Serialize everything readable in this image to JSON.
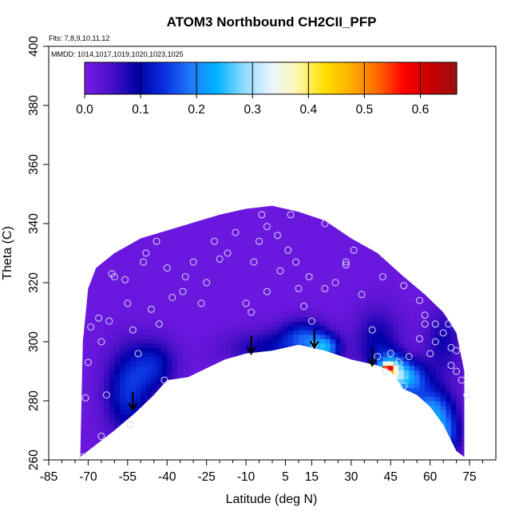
{
  "chart_data": {
    "type": "heatmap",
    "title": "ATOM3 Northbound CH2CII_PFP",
    "flights_note": "Flts: 7,8,9,10,11,12",
    "dates_note": "MMDD: 1014,1017,1019,1020,1023,1025",
    "xlabel": "Latitude (deg N)",
    "ylabel": "Theta (C)",
    "xlim": [
      -85,
      85
    ],
    "ylim": [
      260,
      400
    ],
    "x_ticks": [
      -85,
      -70,
      -55,
      -40,
      -25,
      -10,
      5,
      15,
      30,
      45,
      60,
      75
    ],
    "y_ticks": [
      260,
      280,
      300,
      320,
      340,
      360,
      380,
      400
    ],
    "colorbar": {
      "range": [
        0.0,
        0.665
      ],
      "ticks": [
        0.0,
        0.1,
        0.2,
        0.3,
        0.4,
        0.5,
        0.6
      ],
      "tick_labels": [
        "0.0",
        "0.1",
        "0.2",
        "0.3",
        "0.4",
        "0.5",
        "0.6"
      ],
      "colors": [
        "#7a1be8",
        "#4a10c8",
        "#0000a8",
        "#0a2fe0",
        "#1e7bff",
        "#00b4ff",
        "#8fdcff",
        "#e8f6ff",
        "#fff7b0",
        "#ffe000",
        "#ffb000",
        "#ff6a00",
        "#ff0000",
        "#c80000",
        "#9a1010"
      ]
    },
    "upper_boundary": [
      [
        -73,
        261
      ],
      [
        -72,
        300
      ],
      [
        -70,
        318
      ],
      [
        -67,
        325
      ],
      [
        -60,
        330
      ],
      [
        -50,
        335
      ],
      [
        -35,
        339
      ],
      [
        -20,
        343
      ],
      [
        -10,
        345
      ],
      [
        0,
        346
      ],
      [
        10,
        344
      ],
      [
        20,
        341
      ],
      [
        30,
        335
      ],
      [
        40,
        330
      ],
      [
        50,
        322
      ],
      [
        58,
        316
      ],
      [
        65,
        310
      ],
      [
        70,
        303
      ],
      [
        73,
        290
      ],
      [
        73,
        261
      ]
    ],
    "lower_boundary": [
      [
        -73,
        261
      ],
      [
        -60,
        270
      ],
      [
        -52,
        276
      ],
      [
        -45,
        282
      ],
      [
        -40,
        287
      ],
      [
        -32,
        288
      ],
      [
        -25,
        291
      ],
      [
        -18,
        294
      ],
      [
        -10,
        296
      ],
      [
        0,
        297
      ],
      [
        10,
        299
      ],
      [
        20,
        297
      ],
      [
        30,
        294
      ],
      [
        40,
        292
      ],
      [
        45,
        290
      ],
      [
        50,
        284
      ],
      [
        55,
        282
      ],
      [
        60,
        278
      ],
      [
        65,
        272
      ],
      [
        70,
        263
      ],
      [
        73,
        261
      ]
    ],
    "field_blobs": [
      {
        "x": -55,
        "y": 283,
        "sx": 6,
        "sy": 10,
        "value": 0.12
      },
      {
        "x": -45,
        "y": 292,
        "sx": 6,
        "sy": 6,
        "value": 0.1
      },
      {
        "x": 0,
        "y": 298,
        "sx": 12,
        "sy": 4,
        "value": 0.08
      },
      {
        "x": 12,
        "y": 302,
        "sx": 6,
        "sy": 4,
        "value": 0.12
      },
      {
        "x": 20,
        "y": 298,
        "sx": 4,
        "sy": 3,
        "value": 0.18
      },
      {
        "x": 40,
        "y": 300,
        "sx": 6,
        "sy": 8,
        "value": 0.08
      },
      {
        "x": 45,
        "y": 290,
        "sx": 4,
        "sy": 4,
        "value": 0.24
      },
      {
        "x": 44,
        "y": 291,
        "sx": 1.5,
        "sy": 1.2,
        "value": 0.34
      },
      {
        "x": 52,
        "y": 288,
        "sx": 5,
        "sy": 4,
        "value": 0.17
      },
      {
        "x": 60,
        "y": 276,
        "sx": 6,
        "sy": 6,
        "value": 0.2
      },
      {
        "x": 66,
        "y": 268,
        "sx": 4,
        "sy": 5,
        "value": 0.12
      },
      {
        "x": 65,
        "y": 300,
        "sx": 5,
        "sy": 8,
        "value": 0.07
      }
    ],
    "samples": [
      [
        -72,
        261
      ],
      [
        -71,
        281
      ],
      [
        -70,
        293
      ],
      [
        -69,
        305
      ],
      [
        -66,
        308
      ],
      [
        -65,
        300
      ],
      [
        -63,
        282
      ],
      [
        -62,
        307
      ],
      [
        -60,
        322
      ],
      [
        -56,
        321
      ],
      [
        -55,
        313
      ],
      [
        -53,
        304
      ],
      [
        -51,
        296
      ],
      [
        -46,
        311
      ],
      [
        -43,
        306
      ],
      [
        -41,
        287
      ],
      [
        -38,
        315
      ],
      [
        -34,
        317
      ],
      [
        -33,
        322
      ],
      [
        -30,
        327
      ],
      [
        -25,
        320
      ],
      [
        -20,
        328
      ],
      [
        -17,
        330
      ],
      [
        -10,
        313
      ],
      [
        -7,
        327
      ],
      [
        -5,
        334
      ],
      [
        -2,
        339
      ],
      [
        2,
        336
      ],
      [
        6,
        331
      ],
      [
        10,
        318
      ],
      [
        12,
        312
      ],
      [
        14,
        322
      ],
      [
        15,
        307
      ],
      [
        16,
        299
      ],
      [
        20,
        318
      ],
      [
        24,
        320
      ],
      [
        28,
        326
      ],
      [
        34,
        316
      ],
      [
        38,
        304
      ],
      [
        40,
        295
      ],
      [
        43,
        290
      ],
      [
        45,
        296
      ],
      [
        48,
        293
      ],
      [
        50,
        285
      ],
      [
        52,
        295
      ],
      [
        56,
        301
      ],
      [
        58,
        306
      ],
      [
        60,
        296
      ],
      [
        62,
        300
      ],
      [
        65,
        303
      ],
      [
        67,
        306
      ],
      [
        68,
        292
      ],
      [
        70,
        290
      ],
      [
        72,
        287
      ],
      [
        74,
        282
      ],
      [
        -49,
        327
      ],
      [
        -40,
        325
      ],
      [
        -22,
        334
      ],
      [
        -14,
        337
      ],
      [
        -4,
        343
      ],
      [
        7,
        343
      ],
      [
        20,
        340
      ],
      [
        31,
        331
      ],
      [
        42,
        322
      ],
      [
        50,
        319
      ],
      [
        56,
        314
      ],
      [
        58,
        309
      ],
      [
        62,
        306
      ],
      [
        68,
        298
      ],
      [
        -44,
        334
      ],
      [
        -48,
        330
      ],
      [
        -61,
        323
      ],
      [
        -54,
        272
      ],
      [
        -65,
        268
      ],
      [
        70,
        297
      ],
      [
        28,
        327
      ],
      [
        -27,
        313
      ],
      [
        -8,
        310
      ],
      [
        -2,
        317
      ],
      [
        3,
        324
      ],
      [
        9,
        327
      ]
    ],
    "arrows": [
      [
        -53,
        277
      ],
      [
        -8,
        296
      ],
      [
        16,
        298
      ],
      [
        38,
        292
      ]
    ]
  }
}
